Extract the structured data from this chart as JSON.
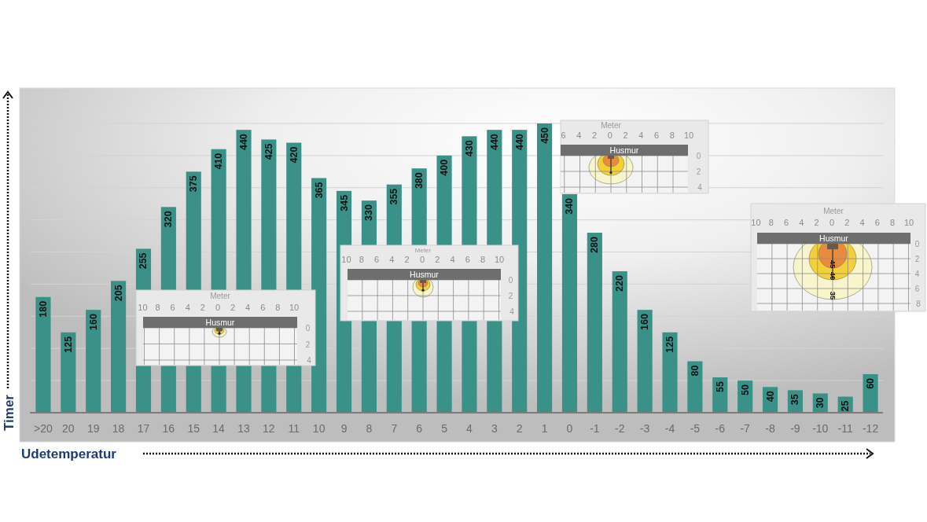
{
  "chart_data": {
    "type": "bar",
    "xlabel": "Udetemperatur",
    "ylabel": "Timer",
    "categories": [
      ">20",
      "20",
      "19",
      "18",
      "17",
      "16",
      "15",
      "14",
      "13",
      "12",
      "11",
      "10",
      "9",
      "8",
      "7",
      "6",
      "5",
      "4",
      "3",
      "2",
      "1",
      "0",
      "-1",
      "-2",
      "-3",
      "-4",
      "-5",
      "-6",
      "-7",
      "-8",
      "-9",
      "-10",
      "-11",
      "-12"
    ],
    "values": [
      180,
      125,
      160,
      205,
      255,
      320,
      375,
      410,
      440,
      425,
      420,
      365,
      345,
      330,
      355,
      380,
      400,
      430,
      440,
      440,
      450,
      340,
      280,
      220,
      160,
      125,
      80,
      55,
      50,
      40,
      35,
      30,
      25,
      60
    ],
    "color": "#3a9188",
    "ylim": [
      0,
      450
    ],
    "yticks": [
      {
        "value": 0,
        "label": null
      },
      {
        "value": 50,
        "label": null
      },
      {
        "value": 100,
        "label": null
      },
      {
        "value": 150,
        "label": null
      },
      {
        "value": 200,
        "label": null
      },
      {
        "value": 250,
        "label": null
      },
      {
        "value": 300,
        "label": null
      },
      {
        "value": 350,
        "label": null
      },
      {
        "value": 400,
        "label": null
      },
      {
        "value": 450,
        "label": null
      }
    ],
    "grid": "y",
    "tick_labels": "x",
    "data_labels": true,
    "annotations": [
      "Meter",
      "6 4 2 0 2 4 6 8 10",
      "Husmur",
      "0 2 4",
      "Meter",
      "10 8 6 4 2 0 2 4 6 8 10",
      "Husmur",
      "0 2 4 6 8",
      "45",
      "40",
      "35",
      "Meter",
      "10 8 6 4 2 0 2 4 6 8 10",
      "Husmur",
      "0 2 4",
      "Meter",
      "10 8 6 4 2 0 2 4 6 8 10",
      "Husmur",
      "0 2 4"
    ]
  }
}
